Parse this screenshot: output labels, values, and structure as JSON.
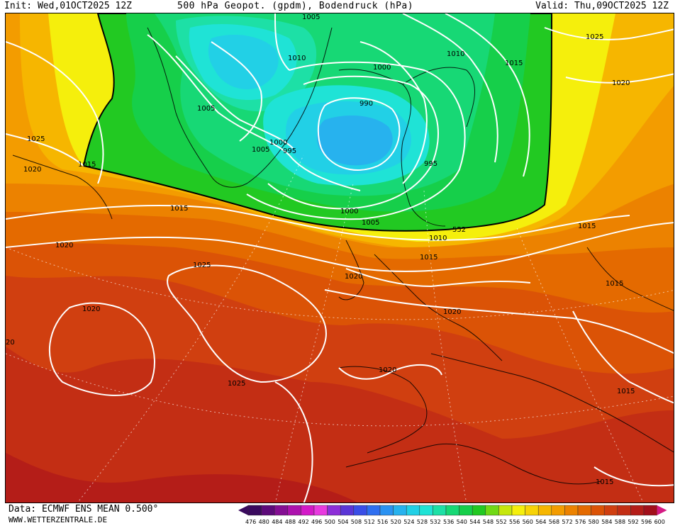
{
  "header": {
    "init": "Init: Wed,01OCT2025 12Z",
    "title": "500 hPa Geopot. (gpdm), Bodendruck (hPa)",
    "valid": "Valid: Thu,09OCT2025 12Z"
  },
  "footer": {
    "data": "Data: ECMWF ENS MEAN 0.500°",
    "site": "WWW.WETTERZENTRALE.DE"
  },
  "legend": {
    "ticks": [
      "476",
      "480",
      "484",
      "488",
      "492",
      "496",
      "500",
      "504",
      "508",
      "512",
      "516",
      "520",
      "524",
      "528",
      "532",
      "536",
      "540",
      "544",
      "548",
      "552",
      "556",
      "560",
      "564",
      "568",
      "572",
      "576",
      "580",
      "584",
      "588",
      "592",
      "596",
      "600"
    ],
    "colors": [
      "#3a0a5e",
      "#5d0b7a",
      "#840f93",
      "#ad12ae",
      "#d319c8",
      "#e83adf",
      "#8d2fd8",
      "#5a35d6",
      "#3a4ee6",
      "#2f6ff0",
      "#2a92f2",
      "#27b2ee",
      "#22d0e6",
      "#1fe3d6",
      "#1de0a6",
      "#17d875",
      "#16cf4a",
      "#22c922",
      "#70d915",
      "#c6e70c",
      "#f5ef0c",
      "#f7d306",
      "#f6b600",
      "#f39c00",
      "#ec8200",
      "#e46a00",
      "#db5306",
      "#d03f10",
      "#c32e14",
      "#b41d18",
      "#a20f1a",
      "#d41a83"
    ]
  },
  "isobars": {
    "labels": [
      "1005",
      "1010",
      "1015",
      "1000",
      "990",
      "1005",
      "995",
      "1000",
      "1005",
      "1015",
      "1020",
      "1025",
      "1020",
      "1020",
      "1015",
      "1015",
      "1020",
      "1025",
      "1015",
      "1020",
      "1020",
      "1025",
      "1020",
      "1015",
      "1020",
      "1015",
      "1015",
      "995",
      "1010",
      "1025",
      "552",
      "20"
    ]
  }
}
